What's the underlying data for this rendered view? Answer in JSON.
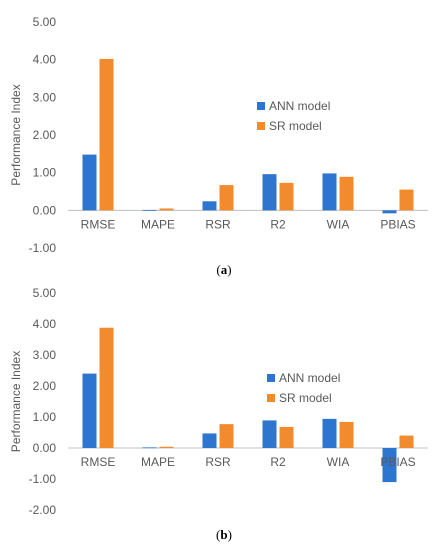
{
  "chart_data": [
    {
      "type": "bar",
      "panel_label": "a",
      "categories": [
        "RMSE",
        "MAPE",
        "RSR",
        "R2",
        "WIA",
        "PBIAS"
      ],
      "series": [
        {
          "name": "ANN model",
          "color": "#2e75d0",
          "values": [
            1.48,
            0.01,
            0.24,
            0.96,
            0.98,
            -0.08
          ]
        },
        {
          "name": "SR model",
          "color": "#f28a2e",
          "values": [
            4.02,
            0.05,
            0.67,
            0.73,
            0.89,
            0.55
          ]
        }
      ],
      "xlabel": "",
      "ylabel": "Performance Index",
      "ylim": [
        -1,
        5
      ],
      "yticks": [
        "-1.00",
        "0.00",
        "1.00",
        "2.00",
        "3.00",
        "4.00",
        "5.00"
      ],
      "ytick_values": [
        -1,
        0,
        1,
        2,
        3,
        4,
        5
      ],
      "grid": false,
      "legend": "inside, center-right"
    },
    {
      "type": "bar",
      "panel_label": "b",
      "categories": [
        "RMSE",
        "MAPE",
        "RSR",
        "R2",
        "WIA",
        "PBIAS"
      ],
      "series": [
        {
          "name": "ANN model",
          "color": "#2e75d0",
          "values": [
            2.4,
            0.02,
            0.47,
            0.89,
            0.94,
            -1.1
          ]
        },
        {
          "name": "SR model",
          "color": "#f28a2e",
          "values": [
            3.88,
            0.04,
            0.77,
            0.68,
            0.84,
            0.4
          ]
        }
      ],
      "xlabel": "",
      "ylabel": "Performance Index",
      "ylim": [
        -2,
        5
      ],
      "yticks": [
        "-2.00",
        "-1.00",
        "0.00",
        "1.00",
        "2.00",
        "3.00",
        "4.00",
        "5.00"
      ],
      "ytick_values": [
        -2,
        -1,
        0,
        1,
        2,
        3,
        4,
        5
      ],
      "grid": false,
      "legend": "inside, center-right"
    }
  ],
  "captions": {
    "a": {
      "open": "(",
      "label": "a",
      "close": ")"
    },
    "b": {
      "open": "(",
      "label": "b",
      "close": ")"
    }
  },
  "colors": {
    "axis": "#bfbfbf",
    "text": "#595959"
  }
}
